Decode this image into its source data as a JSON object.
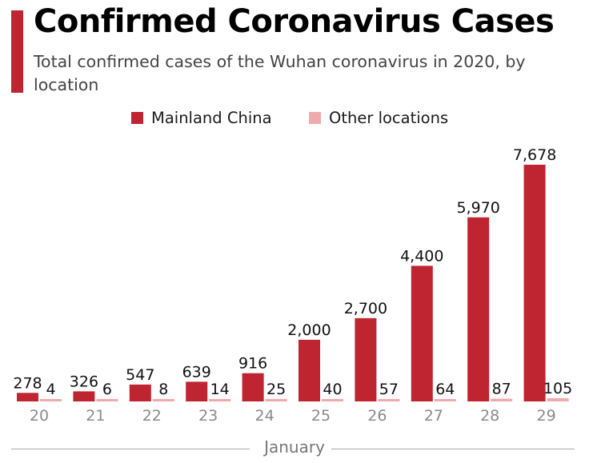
{
  "header": {
    "title": "Confirmed Coronavirus Cases",
    "subtitle": "Total confirmed cases of the Wuhan coronavirus in 2020, by location"
  },
  "legend": {
    "items": [
      {
        "label": "Mainland China",
        "color": "#bf2431"
      },
      {
        "label": "Other locations",
        "color": "#f0a9ad"
      }
    ]
  },
  "chart_data": {
    "type": "bar",
    "title": "Confirmed Coronavirus Cases",
    "subtitle": "Total confirmed cases of the Wuhan coronavirus in 2020, by location",
    "xlabel": "January",
    "ylabel": "",
    "categories": [
      "20",
      "21",
      "22",
      "23",
      "24",
      "25",
      "26",
      "27",
      "28",
      "29"
    ],
    "series": [
      {
        "name": "Mainland China",
        "color": "#bf2431",
        "values": [
          278,
          326,
          547,
          639,
          916,
          2000,
          2700,
          4400,
          5970,
          7678
        ],
        "labels": [
          "278",
          "326",
          "547",
          "639",
          "916",
          "2,000",
          "2,700",
          "4,400",
          "5,970",
          "7,678"
        ]
      },
      {
        "name": "Other locations",
        "color": "#f0a9ad",
        "values": [
          4,
          6,
          8,
          14,
          25,
          40,
          57,
          64,
          87,
          105
        ],
        "labels": [
          "4",
          "6",
          "8",
          "14",
          "25",
          "40",
          "57",
          "64",
          "87",
          "105"
        ]
      }
    ],
    "ylim": [
      0,
      7678
    ],
    "grid": false,
    "legend_position": "top-center"
  }
}
